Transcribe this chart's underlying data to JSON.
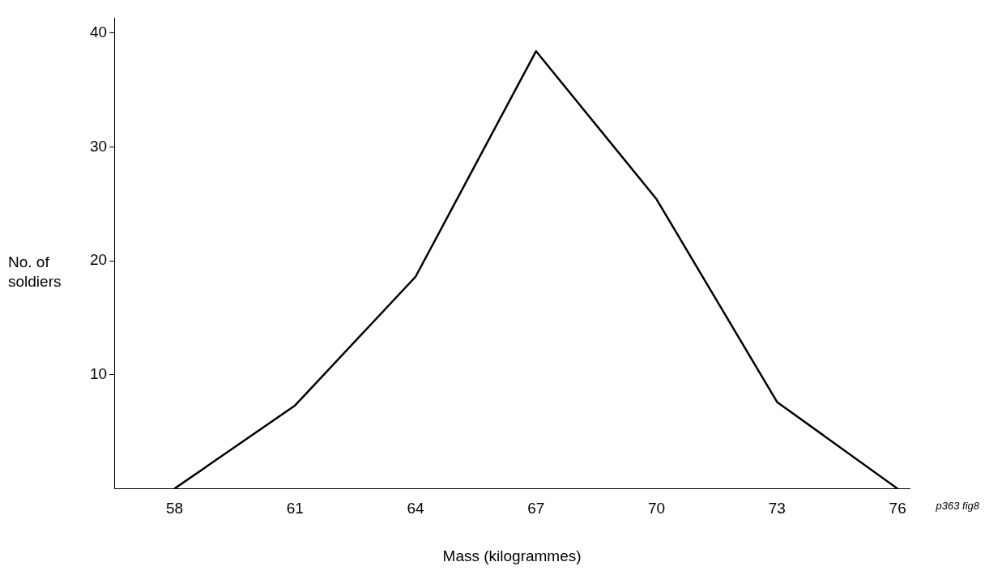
{
  "chart_data": {
    "type": "line",
    "xlabel": "Mass (kilogrammes)",
    "ylabel": "No. of soldiers",
    "x": [
      58,
      61,
      64,
      67,
      70,
      73,
      76
    ],
    "series": [
      {
        "color": "#000000",
        "values": [
          0,
          7.3,
          18.6,
          38.4,
          25.4,
          7.6,
          0
        ]
      }
    ],
    "xlim": [
      56.5,
      76.3
    ],
    "xticks": [
      58,
      61,
      64,
      67,
      70,
      73,
      76
    ],
    "ylim": [
      0,
      41.3
    ],
    "yticks": [
      10,
      20,
      30,
      40
    ],
    "grid": false,
    "legend": false,
    "marker": "none",
    "line_style": "solid",
    "annotations": [
      "p363 fig8"
    ]
  }
}
